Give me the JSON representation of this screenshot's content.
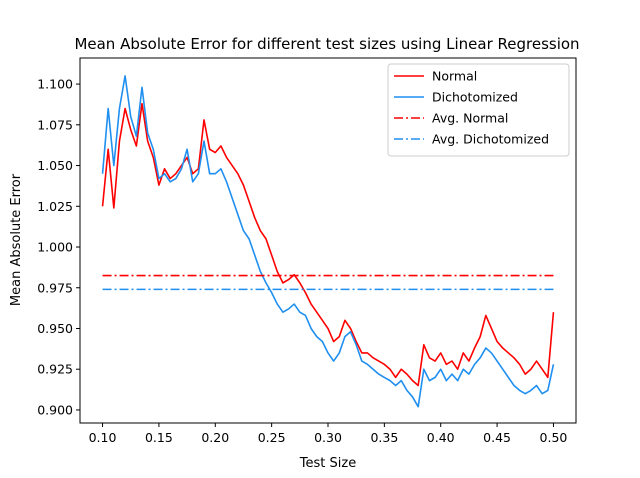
{
  "chart_data": {
    "type": "line",
    "title": "Mean Absolute Error for different test sizes using Linear Regression",
    "xlabel": "Test Size",
    "ylabel": "Mean Absolute Error",
    "xlim": [
      0.08,
      0.52
    ],
    "ylim": [
      0.892,
      1.116
    ],
    "xticks": [
      0.1,
      0.15,
      0.2,
      0.25,
      0.3,
      0.35,
      0.4,
      0.45,
      0.5
    ],
    "xtick_labels": [
      "0.10",
      "0.15",
      "0.20",
      "0.25",
      "0.30",
      "0.35",
      "0.40",
      "0.45",
      "0.50"
    ],
    "yticks": [
      0.9,
      0.925,
      0.95,
      0.975,
      1.0,
      1.025,
      1.05,
      1.075,
      1.1
    ],
    "ytick_labels": [
      "0.900",
      "0.925",
      "0.950",
      "0.975",
      "1.000",
      "1.025",
      "1.050",
      "1.075",
      "1.100"
    ],
    "grid": false,
    "legend_position": "top-right",
    "x": [
      0.1,
      0.105,
      0.11,
      0.115,
      0.12,
      0.125,
      0.13,
      0.135,
      0.14,
      0.145,
      0.15,
      0.155,
      0.16,
      0.165,
      0.17,
      0.175,
      0.18,
      0.185,
      0.19,
      0.195,
      0.2,
      0.205,
      0.21,
      0.215,
      0.22,
      0.225,
      0.23,
      0.235,
      0.24,
      0.245,
      0.25,
      0.255,
      0.26,
      0.265,
      0.27,
      0.275,
      0.28,
      0.285,
      0.29,
      0.295,
      0.3,
      0.305,
      0.31,
      0.315,
      0.32,
      0.325,
      0.33,
      0.335,
      0.34,
      0.345,
      0.35,
      0.355,
      0.36,
      0.365,
      0.37,
      0.375,
      0.38,
      0.385,
      0.39,
      0.395,
      0.4,
      0.405,
      0.41,
      0.415,
      0.42,
      0.425,
      0.43,
      0.435,
      0.44,
      0.445,
      0.45,
      0.455,
      0.46,
      0.465,
      0.47,
      0.475,
      0.48,
      0.485,
      0.49,
      0.495,
      0.5
    ],
    "series": [
      {
        "name": "Normal",
        "color": "#ff0000",
        "style": "solid",
        "values": [
          1.025,
          1.06,
          1.024,
          1.065,
          1.085,
          1.072,
          1.062,
          1.088,
          1.065,
          1.055,
          1.038,
          1.048,
          1.042,
          1.045,
          1.05,
          1.055,
          1.045,
          1.048,
          1.078,
          1.06,
          1.058,
          1.062,
          1.055,
          1.05,
          1.045,
          1.038,
          1.028,
          1.018,
          1.01,
          1.005,
          0.995,
          0.985,
          0.978,
          0.98,
          0.983,
          0.978,
          0.972,
          0.965,
          0.96,
          0.955,
          0.95,
          0.942,
          0.945,
          0.955,
          0.95,
          0.942,
          0.935,
          0.935,
          0.932,
          0.93,
          0.928,
          0.925,
          0.92,
          0.925,
          0.922,
          0.918,
          0.915,
          0.94,
          0.932,
          0.93,
          0.935,
          0.928,
          0.93,
          0.925,
          0.935,
          0.93,
          0.938,
          0.945,
          0.958,
          0.95,
          0.942,
          0.938,
          0.935,
          0.932,
          0.928,
          0.922,
          0.925,
          0.93,
          0.925,
          0.92,
          0.96
        ]
      },
      {
        "name": "Dichotomized",
        "color": "#1f8ff0",
        "style": "solid",
        "values": [
          1.045,
          1.085,
          1.05,
          1.085,
          1.105,
          1.08,
          1.068,
          1.098,
          1.07,
          1.06,
          1.042,
          1.045,
          1.04,
          1.042,
          1.048,
          1.06,
          1.04,
          1.045,
          1.065,
          1.045,
          1.045,
          1.048,
          1.04,
          1.03,
          1.02,
          1.01,
          1.005,
          0.995,
          0.985,
          0.978,
          0.972,
          0.965,
          0.96,
          0.962,
          0.965,
          0.96,
          0.958,
          0.95,
          0.945,
          0.942,
          0.935,
          0.93,
          0.935,
          0.945,
          0.948,
          0.94,
          0.93,
          0.928,
          0.925,
          0.922,
          0.92,
          0.918,
          0.915,
          0.918,
          0.912,
          0.908,
          0.902,
          0.925,
          0.918,
          0.92,
          0.925,
          0.918,
          0.922,
          0.918,
          0.925,
          0.922,
          0.928,
          0.932,
          0.938,
          0.935,
          0.93,
          0.925,
          0.92,
          0.915,
          0.912,
          0.91,
          0.912,
          0.915,
          0.91,
          0.912,
          0.928
        ]
      },
      {
        "name": "Avg. Normal",
        "color": "#ff0000",
        "style": "dashdot",
        "constant": 0.9825
      },
      {
        "name": "Avg. Dichotomized",
        "color": "#1f8ff0",
        "style": "dashdot",
        "constant": 0.974
      }
    ]
  }
}
